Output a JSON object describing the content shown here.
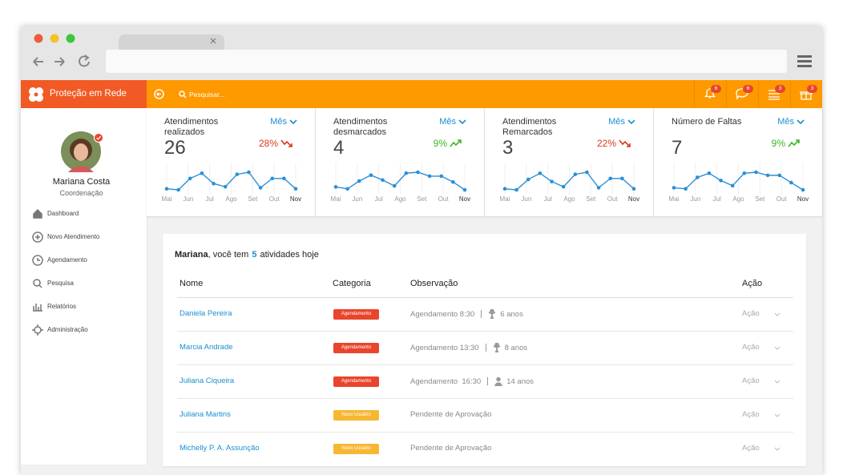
{
  "header": {
    "brand": "Proteção em Rede",
    "search_placeholder": "Pesquisar...",
    "badges": [
      6,
      6,
      3,
      3
    ]
  },
  "user": {
    "name": "Mariana Costa",
    "role": "Coordenação"
  },
  "menu": [
    "Dashboard",
    "Novo Atendimento",
    "Agendamento",
    "Pesquisa",
    "Relatórios",
    "Administração"
  ],
  "months": [
    "Mai",
    "Jun",
    "Jul",
    "Ago",
    "Set",
    "Out",
    "Nov"
  ],
  "cards": [
    {
      "title": "Atendimentos realizados",
      "period": "Mês",
      "value": 26,
      "change": "28%",
      "trend": "down",
      "sparkline": [
        12,
        11,
        22,
        27,
        17,
        14,
        26,
        28,
        13,
        22,
        22,
        12
      ]
    },
    {
      "title": "Atendimentos desmarcados",
      "period": "Mês",
      "value": 4,
      "change": "9%",
      "trend": "up",
      "sparkline": [
        12,
        10,
        18,
        24,
        19,
        13,
        26,
        27,
        23,
        23,
        17,
        9
      ]
    },
    {
      "title": "Atendimentos Remarcados",
      "period": "Mês",
      "value": 3,
      "change": "22%",
      "trend": "down",
      "sparkline": [
        12,
        11,
        21,
        27,
        19,
        14,
        26,
        28,
        13,
        22,
        22,
        12
      ]
    },
    {
      "title": "Número de Faltas",
      "period": "Mês",
      "value": 7,
      "change": "9%",
      "trend": "up",
      "sparkline": [
        12,
        11,
        22,
        26,
        19,
        14,
        26,
        27,
        24,
        24,
        17,
        10
      ]
    }
  ],
  "activities": {
    "greeting": {
      "name": "Mariana",
      "text_before": ", você tem",
      "count": 5,
      "text_after": "atividades hoje"
    },
    "columns": [
      "Nome",
      "Categoria",
      "Observação",
      "Ação"
    ],
    "rows": [
      {
        "name": "Daniela Pereira",
        "category": "Agendamento",
        "category_type": "scheduled",
        "observation": "Agendamento 8:30",
        "age": "6 anos",
        "age_icon": "child",
        "action": "Ação"
      },
      {
        "name": "Marcia Andrade",
        "category": "Agendamento",
        "category_type": "scheduled",
        "observation": "Agendamento 13:30",
        "age": "8 anos",
        "age_icon": "child",
        "action": "Ação"
      },
      {
        "name": "Juliana Ciqueira",
        "category": "Agendamento",
        "category_type": "scheduled",
        "observation": "Agendamento  16:30",
        "age": "14 anos",
        "age_icon": "adult",
        "action": "Ação"
      },
      {
        "name": "Juliana Martins",
        "category": "Novo Usuário",
        "category_type": "new",
        "observation": "Pendente de Aprovação",
        "action": "Ação"
      },
      {
        "name": "Michelly P. A. Assunção",
        "category": "Novo Usuário",
        "category_type": "new",
        "observation": "Pendente de Aprovação",
        "action": "Ação"
      }
    ]
  }
}
